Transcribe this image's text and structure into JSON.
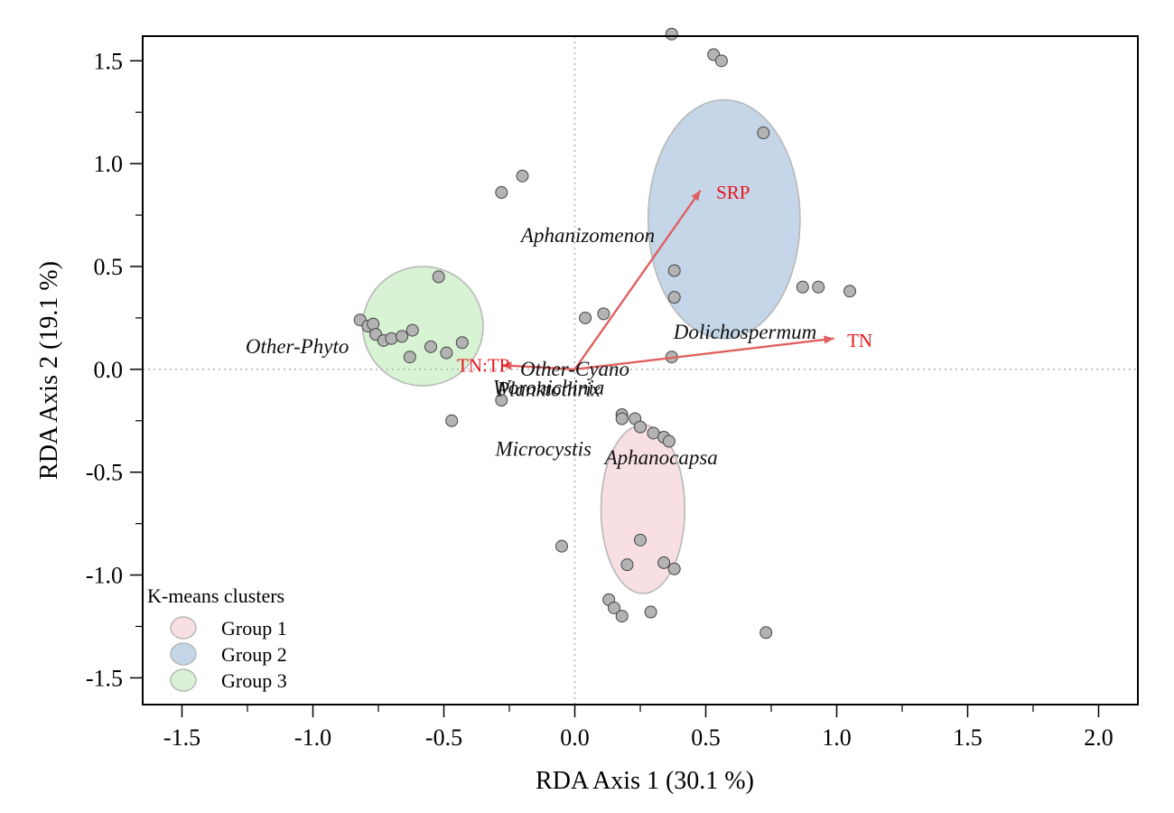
{
  "chart_data": {
    "type": "scatter",
    "xlabel": "RDA Axis 1 (30.1 %)",
    "ylabel": "RDA Axis 2 (19.1 %)",
    "xlim": [
      -1.65,
      2.15
    ],
    "ylim": [
      -1.63,
      1.62
    ],
    "x_ticks": [
      -1.5,
      -1.0,
      -0.5,
      0.0,
      0.5,
      1.0,
      1.5,
      2.0
    ],
    "x_tick_labels": [
      "-1.5",
      "-1.0",
      "-0.5",
      "0.0",
      "0.5",
      "1.0",
      "1.5",
      "2.0"
    ],
    "y_ticks": [
      -1.5,
      -1.0,
      -0.5,
      0.0,
      0.5,
      1.0,
      1.5
    ],
    "y_tick_labels": [
      "-1.5",
      "-1.0",
      "-0.5",
      "0.0",
      "0.5",
      "1.0",
      "1.5"
    ],
    "points": [
      {
        "x": 0.37,
        "y": 1.63
      },
      {
        "x": 0.53,
        "y": 1.53
      },
      {
        "x": 0.56,
        "y": 1.5
      },
      {
        "x": 0.72,
        "y": 1.15
      },
      {
        "x": -0.2,
        "y": 0.94
      },
      {
        "x": -0.28,
        "y": 0.86
      },
      {
        "x": 0.38,
        "y": 0.48
      },
      {
        "x": 0.38,
        "y": 0.35
      },
      {
        "x": 0.87,
        "y": 0.4
      },
      {
        "x": 0.93,
        "y": 0.4
      },
      {
        "x": 1.05,
        "y": 0.38
      },
      {
        "x": -0.52,
        "y": 0.45
      },
      {
        "x": 0.04,
        "y": 0.25
      },
      {
        "x": 0.11,
        "y": 0.27
      },
      {
        "x": -0.82,
        "y": 0.24
      },
      {
        "x": -0.79,
        "y": 0.21
      },
      {
        "x": -0.77,
        "y": 0.22
      },
      {
        "x": -0.76,
        "y": 0.17
      },
      {
        "x": -0.73,
        "y": 0.14
      },
      {
        "x": -0.7,
        "y": 0.15
      },
      {
        "x": -0.66,
        "y": 0.16
      },
      {
        "x": -0.62,
        "y": 0.19
      },
      {
        "x": -0.55,
        "y": 0.11
      },
      {
        "x": -0.43,
        "y": 0.13
      },
      {
        "x": -0.49,
        "y": 0.08
      },
      {
        "x": -0.63,
        "y": 0.06
      },
      {
        "x": 0.37,
        "y": 0.06
      },
      {
        "x": -0.28,
        "y": -0.15
      },
      {
        "x": -0.47,
        "y": -0.25
      },
      {
        "x": 0.18,
        "y": -0.22
      },
      {
        "x": 0.18,
        "y": -0.24
      },
      {
        "x": 0.23,
        "y": -0.24
      },
      {
        "x": 0.25,
        "y": -0.28
      },
      {
        "x": 0.3,
        "y": -0.31
      },
      {
        "x": 0.34,
        "y": -0.33
      },
      {
        "x": 0.36,
        "y": -0.35
      },
      {
        "x": -0.05,
        "y": -0.86
      },
      {
        "x": 0.25,
        "y": -0.83
      },
      {
        "x": 0.2,
        "y": -0.95
      },
      {
        "x": 0.34,
        "y": -0.94
      },
      {
        "x": 0.38,
        "y": -0.97
      },
      {
        "x": 0.13,
        "y": -1.12
      },
      {
        "x": 0.15,
        "y": -1.16
      },
      {
        "x": 0.18,
        "y": -1.2
      },
      {
        "x": 0.29,
        "y": -1.18
      },
      {
        "x": 0.73,
        "y": -1.28
      }
    ],
    "ellipses": [
      {
        "group": "Group 1",
        "cx": 0.26,
        "cy": -0.68,
        "rx": 0.16,
        "ry": 0.41,
        "color": "#f7dfe3"
      },
      {
        "group": "Group 2",
        "cx": 0.57,
        "cy": 0.73,
        "rx": 0.29,
        "ry": 0.58,
        "color": "#c4d6e8"
      },
      {
        "group": "Group 3",
        "cx": -0.58,
        "cy": 0.21,
        "rx": 0.23,
        "ry": 0.29,
        "color": "#d8f2d4"
      }
    ],
    "arrows": [
      {
        "label": "SRP",
        "x": 0.48,
        "y": 0.87,
        "lx": 0.54,
        "ly": 0.86
      },
      {
        "label": "TN",
        "x": 0.99,
        "y": 0.15,
        "lx": 1.04,
        "ly": 0.14
      },
      {
        "label": "TN:TP",
        "x": -0.28,
        "y": 0.02,
        "lx": -0.45,
        "ly": 0.02
      }
    ],
    "arrow_color": "#e06060",
    "species": [
      {
        "label": "Aphanizomenon",
        "x": 0.05,
        "y": 0.65
      },
      {
        "label": "Dolichospermum",
        "x": 0.65,
        "y": 0.18
      },
      {
        "label": "Other-Phyto",
        "x": -1.06,
        "y": 0.11
      },
      {
        "label": "Other-Cyano",
        "x": 0.0,
        "y": 0.0
      },
      {
        "label": "Woronichinia",
        "x": -0.1,
        "y": -0.09
      },
      {
        "label": "Planktothrix",
        "x": -0.1,
        "y": -0.1
      },
      {
        "label": "Microcystis",
        "x": -0.12,
        "y": -0.39
      },
      {
        "label": "Aphanocapsa",
        "x": 0.33,
        "y": -0.43
      }
    ],
    "legend": {
      "title": "K-means clusters",
      "position": "bottom-left",
      "items": [
        {
          "label": "Group 1",
          "color": "#f7dfe3"
        },
        {
          "label": "Group 2",
          "color": "#c4d6e8"
        },
        {
          "label": "Group 3",
          "color": "#d8f2d4"
        }
      ]
    },
    "grid": false
  }
}
